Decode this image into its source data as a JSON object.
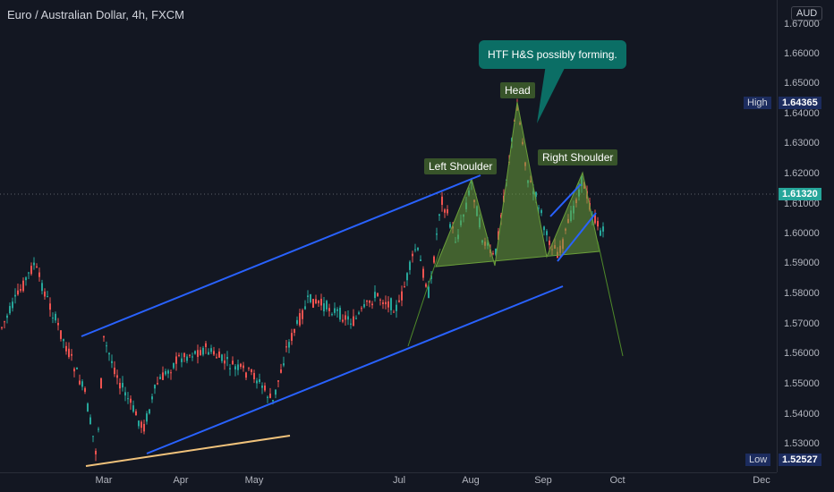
{
  "header": {
    "symbol_title": "Euro / Australian Dollar, 4h, FXCM",
    "currency": "AUD"
  },
  "price_scale": {
    "ticks": [
      "1.67000",
      "1.66000",
      "1.65000",
      "1.64000",
      "1.63000",
      "1.62000",
      "1.61000",
      "1.60000",
      "1.59000",
      "1.58000",
      "1.57000",
      "1.56000",
      "1.55000",
      "1.54000",
      "1.53000"
    ],
    "high_label": "High",
    "high_value": "1.64365",
    "current_value": "1.61320",
    "low_label": "Low",
    "low_value": "1.52527"
  },
  "time_scale": {
    "labels": [
      "Mar",
      "Apr",
      "May",
      "Jul",
      "Aug",
      "Sep",
      "Oct",
      "Dec"
    ]
  },
  "annotations": {
    "callout": "HTF H&S possibly forming.",
    "head": "Head",
    "left_shoulder": "Left Shoulder",
    "right_shoulder": "Right Shoulder"
  },
  "colors": {
    "background": "#131722",
    "up_candle": "#26a69a",
    "down_candle": "#ef5350",
    "channel_line": "#2962ff",
    "trend_line": "#f0c27b",
    "pattern_fill": "#6a9e3a",
    "callout_bg": "#0b6e65",
    "current_price_bg": "#26a69a",
    "extreme_bg": "#1c2c5e"
  }
}
